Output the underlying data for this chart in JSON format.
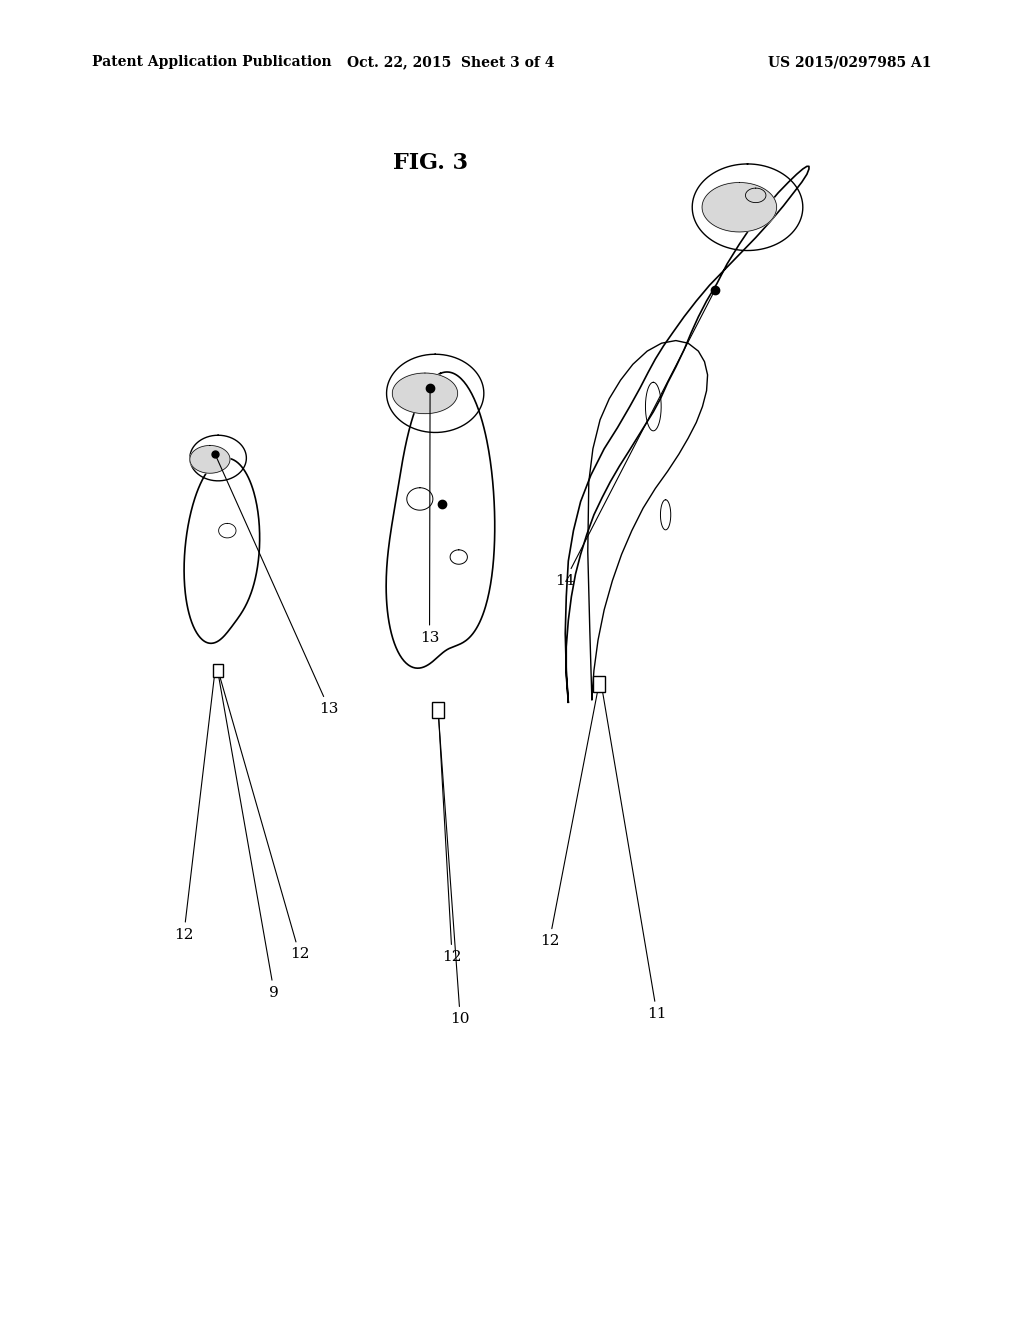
{
  "background_color": "#ffffff",
  "header_left": "Patent Application Publication",
  "header_center": "Oct. 22, 2015  Sheet 3 of 4",
  "header_right": "US 2015/0297985 A1",
  "fig_label": "FIG. 3",
  "header_fontsize": 10,
  "fig_label_fontsize": 16,
  "label_fontsize": 11
}
